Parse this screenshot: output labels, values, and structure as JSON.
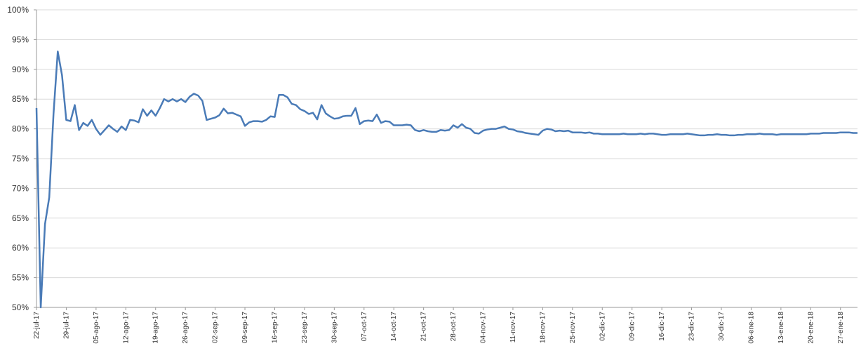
{
  "chart_data": {
    "type": "line",
    "color": "#4a7bb7",
    "grid": true,
    "ylim": [
      50,
      100
    ],
    "yticks": [
      {
        "value": 50,
        "label": "50%"
      },
      {
        "value": 55,
        "label": "55%"
      },
      {
        "value": 60,
        "label": "60%"
      },
      {
        "value": 65,
        "label": "65%"
      },
      {
        "value": 70,
        "label": "70%"
      },
      {
        "value": 75,
        "label": "75%"
      },
      {
        "value": 80,
        "label": "80%"
      },
      {
        "value": 85,
        "label": "85%"
      },
      {
        "value": 90,
        "label": "90%"
      },
      {
        "value": 95,
        "label": "95%"
      },
      {
        "value": 100,
        "label": "100%"
      }
    ],
    "categories": [
      "22-jul-17",
      null,
      null,
      null,
      null,
      null,
      null,
      "29-jul-17",
      null,
      null,
      null,
      null,
      null,
      null,
      "05-ago-17",
      null,
      null,
      null,
      null,
      null,
      null,
      "12-ago-17",
      null,
      null,
      null,
      null,
      null,
      null,
      "19-ago-17",
      null,
      null,
      null,
      null,
      null,
      null,
      "26-ago-17",
      null,
      null,
      null,
      null,
      null,
      null,
      "02-sep-17",
      null,
      null,
      null,
      null,
      null,
      null,
      "09-sep-17",
      null,
      null,
      null,
      null,
      null,
      null,
      "16-sep-17",
      null,
      null,
      null,
      null,
      null,
      null,
      "23-sep-17",
      null,
      null,
      null,
      null,
      null,
      null,
      "30-sep-17",
      null,
      null,
      null,
      null,
      null,
      null,
      "07-oct-17",
      null,
      null,
      null,
      null,
      null,
      null,
      "14-oct-17",
      null,
      null,
      null,
      null,
      null,
      null,
      "21-oct-17",
      null,
      null,
      null,
      null,
      null,
      null,
      "28-oct-17",
      null,
      null,
      null,
      null,
      null,
      null,
      "04-nov-17",
      null,
      null,
      null,
      null,
      null,
      null,
      "11-nov-17",
      null,
      null,
      null,
      null,
      null,
      null,
      "18-nov-17",
      null,
      null,
      null,
      null,
      null,
      null,
      "25-nov-17",
      null,
      null,
      null,
      null,
      null,
      null,
      "02-dic-17",
      null,
      null,
      null,
      null,
      null,
      null,
      "09-dic-17",
      null,
      null,
      null,
      null,
      null,
      null,
      "16-dic-17",
      null,
      null,
      null,
      null,
      null,
      null,
      "23-dic-17",
      null,
      null,
      null,
      null,
      null,
      null,
      "30-dic-17",
      null,
      null,
      null,
      null,
      null,
      null,
      "06-ene-18",
      null,
      null,
      null,
      null,
      null,
      null,
      "13-ene-18",
      null,
      null,
      null,
      null,
      null,
      null,
      "20-ene-18",
      null,
      null,
      null,
      null,
      null,
      null,
      "27-ene-18",
      null,
      null,
      null,
      null
    ],
    "values": [
      83.5,
      50,
      64,
      68.5,
      82.5,
      93,
      89,
      81.5,
      81.3,
      84,
      79.8,
      81,
      80.5,
      81.5,
      80,
      79,
      79.8,
      80.6,
      80,
      79.5,
      80.4,
      79.8,
      81.5,
      81.4,
      81.1,
      83.3,
      82.2,
      83.1,
      82.2,
      83.5,
      85,
      84.6,
      85,
      84.6,
      85,
      84.5,
      85.4,
      85.9,
      85.6,
      84.7,
      81.5,
      81.7,
      81.9,
      82.3,
      83.4,
      82.6,
      82.7,
      82.4,
      82.1,
      80.5,
      81.1,
      81.3,
      81.3,
      81.2,
      81.5,
      82.1,
      82,
      85.7,
      85.7,
      85.3,
      84.2,
      84,
      83.3,
      83,
      82.5,
      82.7,
      81.6,
      84,
      82.6,
      82.1,
      81.7,
      81.8,
      82.1,
      82.2,
      82.2,
      83.5,
      80.8,
      81.3,
      81.4,
      81.3,
      82.4,
      81,
      81.3,
      81.2,
      80.6,
      80.6,
      80.6,
      80.7,
      80.6,
      79.8,
      79.6,
      79.8,
      79.6,
      79.5,
      79.5,
      79.8,
      79.7,
      79.8,
      80.6,
      80.2,
      80.8,
      80.2,
      80,
      79.3,
      79.2,
      79.7,
      79.9,
      80,
      80,
      80.2,
      80.4,
      80,
      79.9,
      79.6,
      79.5,
      79.3,
      79.2,
      79.1,
      79,
      79.7,
      80,
      79.9,
      79.6,
      79.7,
      79.6,
      79.7,
      79.4,
      79.4,
      79.4,
      79.3,
      79.4,
      79.2,
      79.2,
      79.1,
      79.1,
      79.1,
      79.1,
      79.1,
      79.2,
      79.1,
      79.1,
      79.1,
      79.2,
      79.1,
      79.2,
      79.2,
      79.1,
      79.0,
      79.0,
      79.1,
      79.1,
      79.1,
      79.1,
      79.2,
      79.1,
      79.0,
      78.9,
      78.9,
      79.0,
      79.0,
      79.1,
      79.0,
      79.0,
      78.9,
      78.9,
      79.0,
      79.0,
      79.1,
      79.1,
      79.1,
      79.2,
      79.1,
      79.1,
      79.1,
      79.0,
      79.1,
      79.1,
      79.1,
      79.1,
      79.1,
      79.1,
      79.1,
      79.2,
      79.2,
      79.2,
      79.3,
      79.3,
      79.3,
      79.3,
      79.4,
      79.4,
      79.4,
      79.3,
      79.3
    ]
  }
}
